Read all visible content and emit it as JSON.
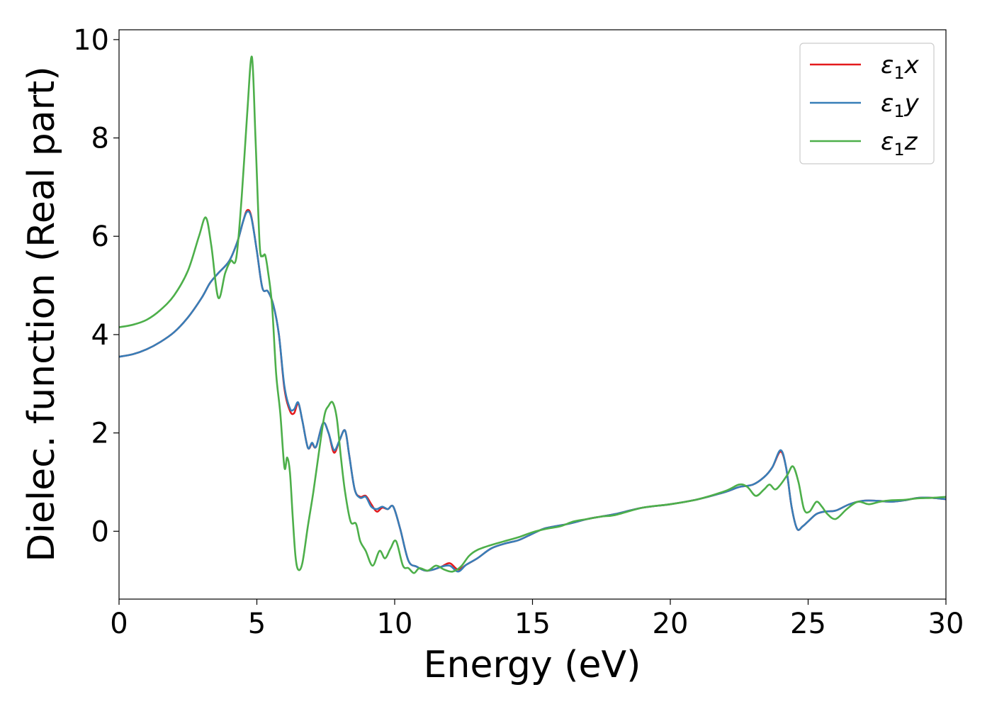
{
  "chart_data": {
    "type": "line",
    "xlabel": "Energy (eV)",
    "ylabel": "Dielec. function (Real part)",
    "xlim": [
      0,
      30
    ],
    "ylim": [
      -1.38,
      10.2
    ],
    "xticks": [
      0,
      5,
      10,
      15,
      20,
      25,
      30
    ],
    "yticks": [
      0,
      2,
      4,
      6,
      8,
      10
    ],
    "grid": false,
    "legend_position": "top-right",
    "series": [
      {
        "name": "ε₁x",
        "legend_main": "ε",
        "legend_sub": "1",
        "legend_suffix": "x",
        "color": "#e41a1c",
        "x": [
          0,
          0.5,
          1.0,
          1.5,
          2.0,
          2.5,
          3.0,
          3.3,
          3.6,
          4.0,
          4.3,
          4.5,
          4.65,
          4.8,
          5.0,
          5.2,
          5.4,
          5.6,
          5.8,
          6.0,
          6.2,
          6.35,
          6.5,
          6.65,
          6.85,
          7.0,
          7.15,
          7.4,
          7.6,
          7.8,
          8.0,
          8.2,
          8.35,
          8.55,
          8.75,
          8.95,
          9.15,
          9.35,
          9.55,
          9.75,
          9.95,
          10.2,
          10.5,
          10.8,
          11.1,
          11.4,
          11.7,
          12.0,
          12.3,
          12.6,
          13.0,
          13.5,
          14.0,
          14.5,
          15.0,
          15.4,
          15.8,
          16.3,
          17.0,
          17.5,
          18.0,
          19.0,
          20.0,
          21.0,
          22.0,
          22.5,
          23.0,
          23.4,
          23.7,
          24.0,
          24.2,
          24.4,
          24.6,
          24.8,
          25.0,
          25.3,
          25.6,
          26.0,
          26.5,
          27.0,
          27.5,
          28.0,
          28.5,
          29.0,
          29.5,
          30.0
        ],
        "y": [
          3.55,
          3.6,
          3.7,
          3.85,
          4.05,
          4.35,
          4.75,
          5.05,
          5.25,
          5.5,
          5.9,
          6.3,
          6.53,
          6.4,
          5.7,
          4.95,
          4.88,
          4.6,
          4.0,
          2.9,
          2.45,
          2.4,
          2.6,
          2.25,
          1.7,
          1.78,
          1.72,
          2.2,
          2.0,
          1.6,
          1.85,
          2.05,
          1.55,
          0.85,
          0.7,
          0.72,
          0.55,
          0.4,
          0.48,
          0.45,
          0.5,
          0.05,
          -0.6,
          -0.72,
          -0.8,
          -0.78,
          -0.72,
          -0.65,
          -0.78,
          -0.68,
          -0.55,
          -0.35,
          -0.25,
          -0.18,
          -0.05,
          0.05,
          0.1,
          0.15,
          0.25,
          0.3,
          0.35,
          0.48,
          0.55,
          0.65,
          0.8,
          0.9,
          0.95,
          1.1,
          1.3,
          1.62,
          1.3,
          0.5,
          0.05,
          0.1,
          0.2,
          0.35,
          0.4,
          0.42,
          0.55,
          0.62,
          0.62,
          0.6,
          0.63,
          0.68,
          0.68,
          0.65
        ]
      },
      {
        "name": "ε₁y",
        "legend_main": "ε",
        "legend_sub": "1",
        "legend_suffix": "y",
        "color": "#377eb8",
        "x": [
          0,
          0.5,
          1.0,
          1.5,
          2.0,
          2.5,
          3.0,
          3.3,
          3.6,
          4.0,
          4.3,
          4.5,
          4.65,
          4.8,
          5.0,
          5.2,
          5.4,
          5.6,
          5.8,
          6.0,
          6.2,
          6.35,
          6.5,
          6.65,
          6.85,
          7.0,
          7.15,
          7.4,
          7.6,
          7.8,
          8.0,
          8.2,
          8.35,
          8.55,
          8.75,
          8.95,
          9.15,
          9.35,
          9.55,
          9.75,
          9.95,
          10.2,
          10.5,
          10.8,
          11.1,
          11.4,
          11.7,
          12.0,
          12.3,
          12.6,
          13.0,
          13.5,
          14.0,
          14.5,
          15.0,
          15.4,
          15.8,
          16.3,
          17.0,
          17.5,
          18.0,
          19.0,
          20.0,
          21.0,
          22.0,
          22.5,
          23.0,
          23.4,
          23.7,
          24.0,
          24.2,
          24.4,
          24.6,
          24.8,
          25.0,
          25.3,
          25.6,
          26.0,
          26.5,
          27.0,
          27.5,
          28.0,
          28.5,
          29.0,
          29.5,
          30.0
        ],
        "y": [
          3.55,
          3.6,
          3.7,
          3.85,
          4.05,
          4.35,
          4.75,
          5.05,
          5.25,
          5.5,
          5.9,
          6.3,
          6.5,
          6.38,
          5.7,
          4.95,
          4.88,
          4.6,
          4.0,
          2.95,
          2.5,
          2.48,
          2.62,
          2.25,
          1.7,
          1.8,
          1.72,
          2.2,
          2.0,
          1.65,
          1.85,
          2.05,
          1.55,
          0.85,
          0.68,
          0.7,
          0.5,
          0.45,
          0.5,
          0.45,
          0.5,
          0.05,
          -0.6,
          -0.72,
          -0.8,
          -0.78,
          -0.72,
          -0.7,
          -0.82,
          -0.68,
          -0.55,
          -0.35,
          -0.25,
          -0.18,
          -0.05,
          0.05,
          0.1,
          0.15,
          0.25,
          0.3,
          0.35,
          0.48,
          0.55,
          0.65,
          0.8,
          0.9,
          0.95,
          1.1,
          1.3,
          1.65,
          1.3,
          0.5,
          0.05,
          0.1,
          0.2,
          0.35,
          0.4,
          0.42,
          0.55,
          0.62,
          0.62,
          0.6,
          0.63,
          0.68,
          0.68,
          0.65
        ]
      },
      {
        "name": "ε₁z",
        "legend_main": "ε",
        "legend_sub": "1",
        "legend_suffix": "z",
        "color": "#4daf4a",
        "x": [
          0,
          0.5,
          1.0,
          1.5,
          2.0,
          2.5,
          2.9,
          3.15,
          3.35,
          3.6,
          3.85,
          4.05,
          4.25,
          4.45,
          4.65,
          4.82,
          4.95,
          5.1,
          5.2,
          5.3,
          5.4,
          5.55,
          5.7,
          5.85,
          6.0,
          6.1,
          6.2,
          6.3,
          6.4,
          6.5,
          6.65,
          6.85,
          7.05,
          7.25,
          7.45,
          7.6,
          7.75,
          7.9,
          8.05,
          8.2,
          8.4,
          8.6,
          8.75,
          8.95,
          9.2,
          9.45,
          9.65,
          9.85,
          10.05,
          10.3,
          10.5,
          10.7,
          10.9,
          11.2,
          11.5,
          11.8,
          12.1,
          12.4,
          12.7,
          13.0,
          13.5,
          14.0,
          14.5,
          15.0,
          15.5,
          16.0,
          16.5,
          17.0,
          17.5,
          18.0,
          19.0,
          20.0,
          21.0,
          22.0,
          22.5,
          22.8,
          23.1,
          23.4,
          23.6,
          23.8,
          24.0,
          24.25,
          24.45,
          24.65,
          24.85,
          25.05,
          25.3,
          25.5,
          25.7,
          26.0,
          26.4,
          26.8,
          27.2,
          27.6,
          28.0,
          28.5,
          29.0,
          29.5,
          30.0
        ],
        "y": [
          4.15,
          4.2,
          4.3,
          4.5,
          4.8,
          5.3,
          6.0,
          6.38,
          5.8,
          4.75,
          5.25,
          5.5,
          5.55,
          6.8,
          8.5,
          9.65,
          8.0,
          5.85,
          5.6,
          5.62,
          5.3,
          4.6,
          3.2,
          2.4,
          1.3,
          1.5,
          1.2,
          0.3,
          -0.5,
          -0.78,
          -0.65,
          0.1,
          0.8,
          1.6,
          2.35,
          2.55,
          2.62,
          2.3,
          1.5,
          0.8,
          0.2,
          0.15,
          -0.2,
          -0.4,
          -0.7,
          -0.4,
          -0.55,
          -0.35,
          -0.2,
          -0.7,
          -0.75,
          -0.85,
          -0.75,
          -0.8,
          -0.7,
          -0.78,
          -0.82,
          -0.72,
          -0.5,
          -0.38,
          -0.28,
          -0.2,
          -0.12,
          -0.02,
          0.05,
          0.1,
          0.2,
          0.25,
          0.3,
          0.33,
          0.48,
          0.55,
          0.65,
          0.82,
          0.95,
          0.9,
          0.72,
          0.85,
          0.95,
          0.85,
          0.95,
          1.15,
          1.32,
          1.0,
          0.45,
          0.4,
          0.6,
          0.5,
          0.35,
          0.25,
          0.45,
          0.6,
          0.55,
          0.6,
          0.63,
          0.64,
          0.67,
          0.68,
          0.7
        ]
      }
    ]
  }
}
